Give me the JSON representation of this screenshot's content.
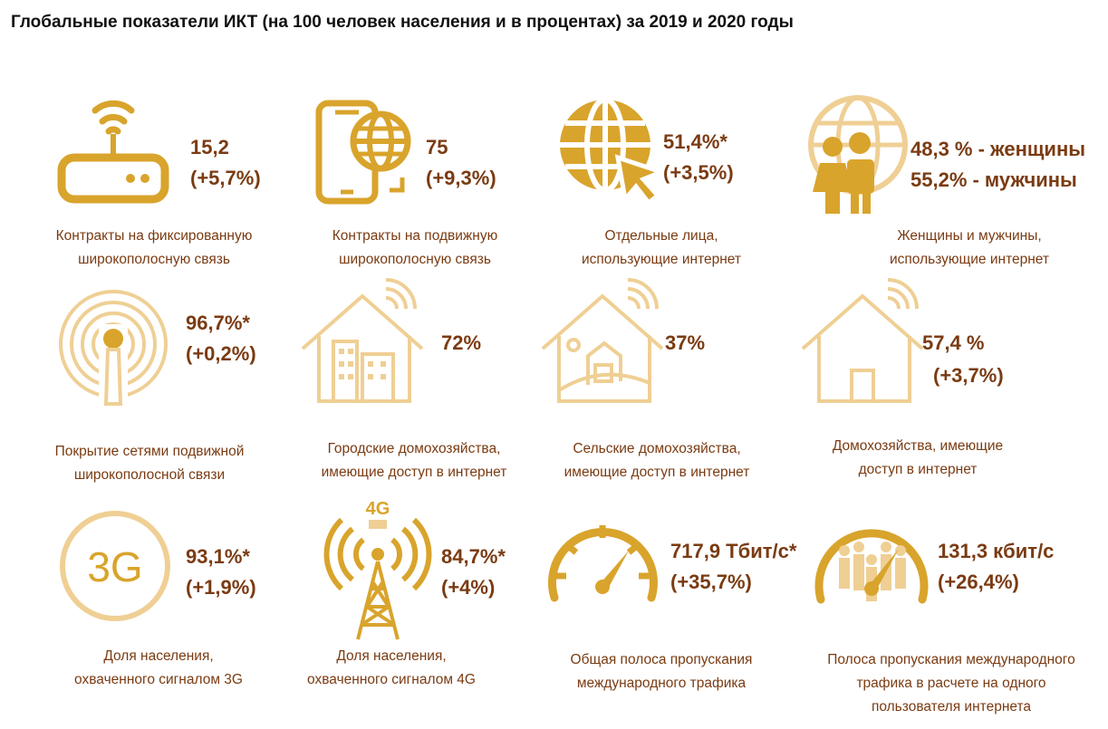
{
  "title": "Глобальные показатели ИКТ (на 100 человек населения и в процентах) за 2019 и 2020 годы",
  "colors": {
    "icon_gold": "#d9a42c",
    "icon_light": "#efcf94",
    "text_brown": "#7a3b12"
  },
  "items": [
    {
      "icon": "router-icon",
      "value": "15,2",
      "change": "(+5,7%)",
      "caption1": "Контракты на фиксированную",
      "caption2": "широкополосную связь"
    },
    {
      "icon": "smartphone-globe-icon",
      "value": "75",
      "change": "(+9,3%)",
      "caption1": "Контракты на подвижную",
      "caption2": "широкополосную связь"
    },
    {
      "icon": "globe-cursor-icon",
      "value": "51,4%*",
      "change": "(+3,5%)",
      "caption1": "Отдельные лица,",
      "caption2": "использующие интернет"
    },
    {
      "icon": "people-globe-icon",
      "value": "48,3 % - женщины",
      "change": "55,2% - мужчины",
      "caption1": "Женщины и мужчины,",
      "caption2": "использующие интернет"
    },
    {
      "icon": "signal-tower-icon",
      "value": "96,7%*",
      "change": "(+0,2%)",
      "caption1": "Покрытие сетями подвижной",
      "caption2": "широкополосной связи"
    },
    {
      "icon": "city-house-icon",
      "value": "72%",
      "change": "",
      "caption1": "Городские домохозяйства,",
      "caption2": "имеющие доступ в интернет"
    },
    {
      "icon": "rural-house-icon",
      "value": "37%",
      "change": "",
      "caption1": "Сельские домохозяйства,",
      "caption2": "имеющие доступ в интернет"
    },
    {
      "icon": "house-wifi-icon",
      "value": "57,4 %",
      "change": "(+3,7%)",
      "caption1": "Домохозяйства, имеющие",
      "caption2": "доступ в интернет"
    },
    {
      "icon": "3g-icon",
      "icon_text": "3G",
      "value": "93,1%*",
      "change": "(+1,9%)",
      "caption1": "Доля населения,",
      "caption2": "охваченного сигналом 3G"
    },
    {
      "icon": "4g-tower-icon",
      "icon_text": "4G",
      "value": "84,7%*",
      "change": "(+4%)",
      "caption1": "Доля населения,",
      "caption2": "охваченного сигналом 4G"
    },
    {
      "icon": "speedometer-icon",
      "value": "717,9 Тбит/с*",
      "change": "(+35,7%)",
      "caption1": "Общая полоса пропускания",
      "caption2": "международного трафика"
    },
    {
      "icon": "speedometer-people-icon",
      "value": "131,3 кбит/с",
      "change": "(+26,4%)",
      "caption1": "Полоса пропускания международного",
      "caption2": "трафика в расчете на одного",
      "caption3": "пользователя интернета"
    }
  ]
}
